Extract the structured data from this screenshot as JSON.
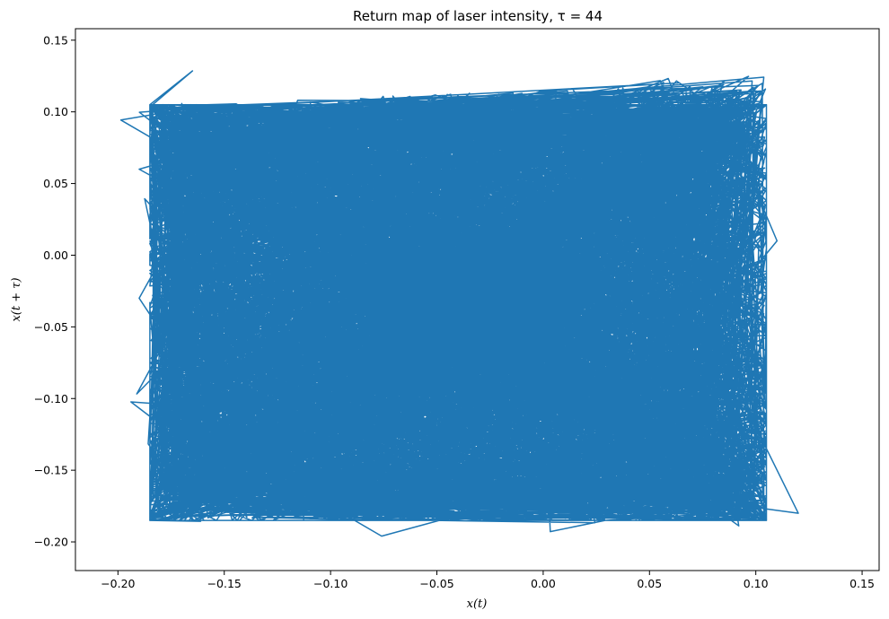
{
  "chart_data": {
    "type": "line",
    "title": "Return map of laser intensity, τ = 44",
    "xlabel": "x(t)",
    "ylabel": "x(t + τ)",
    "xlim": [
      -0.22,
      0.158
    ],
    "ylim": [
      -0.22,
      0.158
    ],
    "x_ticks": [
      "−0.20",
      "−0.15",
      "−0.10",
      "−0.05",
      "0.00",
      "0.05",
      "0.10",
      "0.15"
    ],
    "y_ticks": [
      "−0.20",
      "−0.15",
      "−0.10",
      "−0.05",
      "0.00",
      "0.05",
      "0.10",
      "0.15"
    ],
    "grid": false,
    "legend": "none",
    "series": [
      {
        "color": "#1f77b4",
        "description_of_extent": "dense chaotic trajectory filling the region x ∈ [-0.20, 0.14], y ∈ [-0.20, 0.14]",
        "x": [
          -0.19,
          -0.12,
          -0.05,
          0.02,
          0.09,
          0.11,
          0.06,
          -0.02,
          -0.1,
          -0.17,
          -0.18,
          -0.14,
          -0.06,
          0.01,
          0.07,
          0.1,
          0.08,
          0.02,
          -0.07,
          -0.15,
          -0.19,
          -0.16,
          -0.09,
          -0.01,
          0.05,
          0.1,
          0.12,
          0.07,
          -0.03,
          -0.12
        ],
        "y": [
          0.06,
          0.09,
          0.1,
          0.1,
          0.08,
          0.01,
          -0.08,
          -0.14,
          -0.17,
          -0.15,
          -0.08,
          0.0,
          0.05,
          0.07,
          0.06,
          -0.02,
          -0.11,
          -0.17,
          -0.18,
          -0.12,
          -0.03,
          0.05,
          0.08,
          0.05,
          -0.03,
          -0.12,
          -0.18,
          -0.17,
          -0.1,
          -0.02
        ]
      }
    ]
  }
}
